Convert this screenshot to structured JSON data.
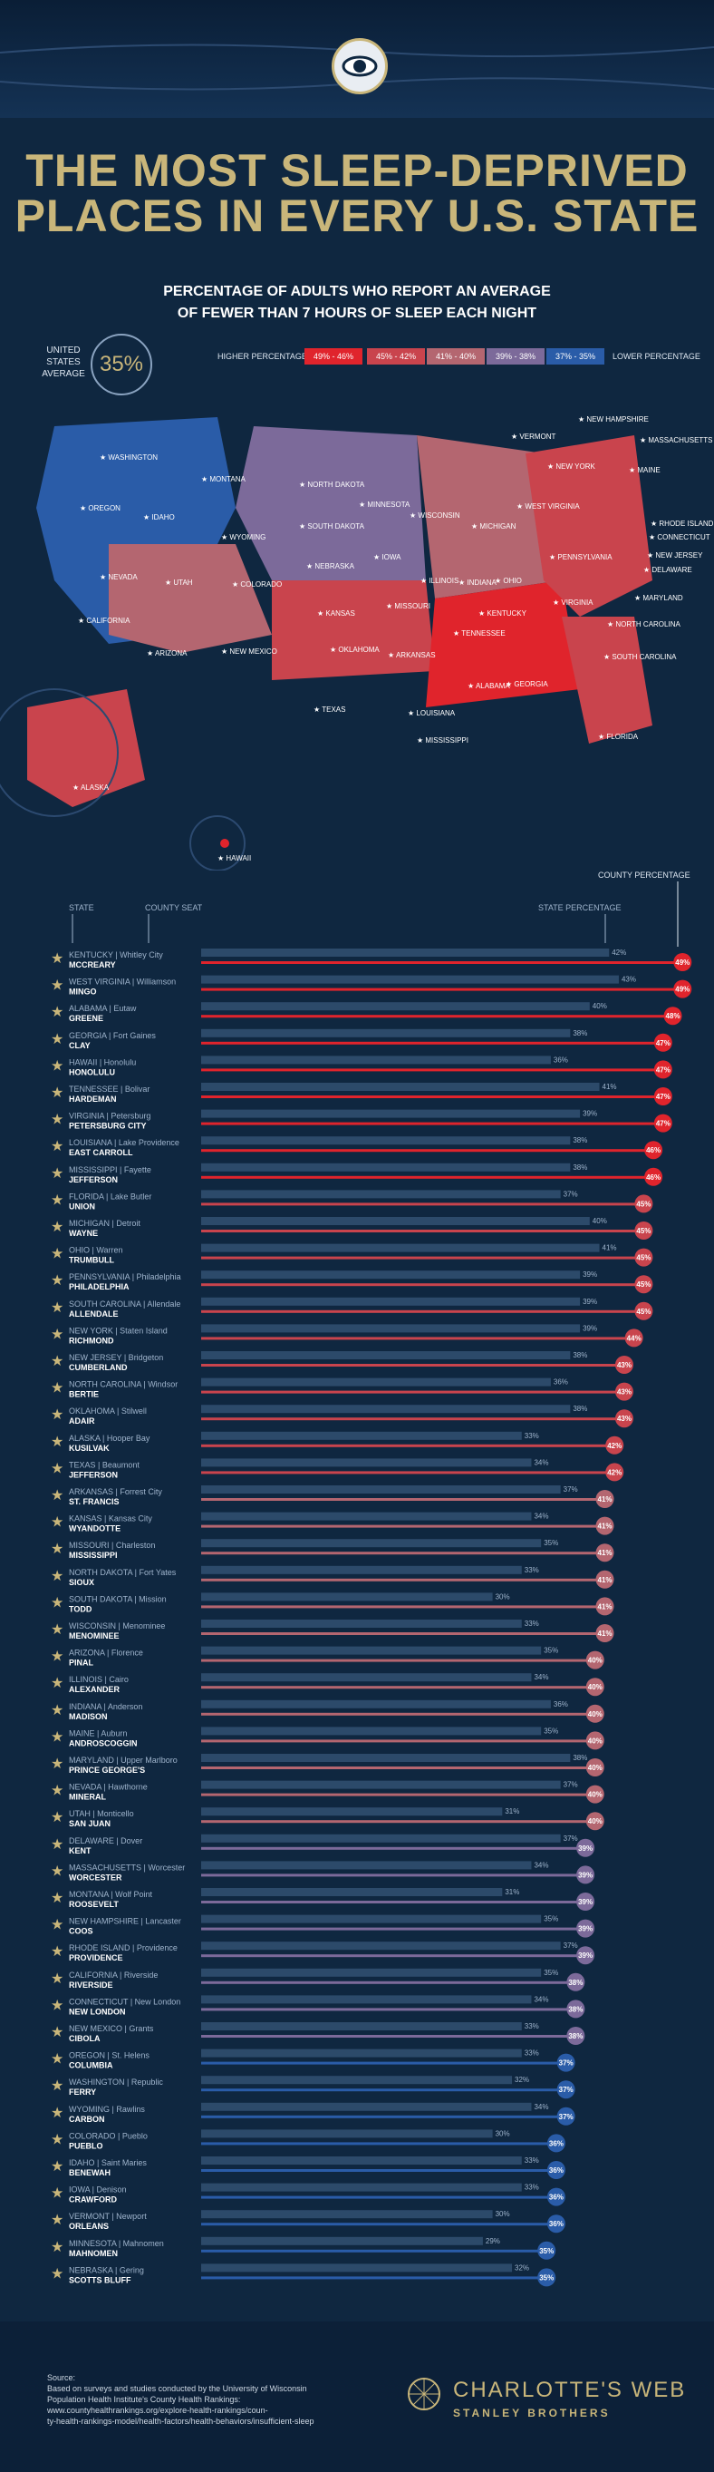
{
  "title_line1": "THE MOST SLEEP-DEPRIVED",
  "title_line2": "PLACES IN EVERY U.S. STATE",
  "subtitle_line1": "PERCENTAGE OF ADULTS WHO REPORT AN AVERAGE",
  "subtitle_line2": "OF FEWER THAN 7 HOURS OF SLEEP EACH NIGHT",
  "us_avg_label_1": "UNITED",
  "us_avg_label_2": "STATES",
  "us_avg_label_3": "AVERAGE",
  "us_avg_value": "35%",
  "legend": {
    "higher": "HIGHER PERCENTAGE",
    "lower": "LOWER PERCENTAGE",
    "bins": [
      {
        "label": "49% - 46%",
        "color": "#e0242c"
      },
      {
        "label": "45% - 42%",
        "color": "#c9444d"
      },
      {
        "label": "41% - 40%",
        "color": "#b46670"
      },
      {
        "label": "39% - 38%",
        "color": "#7c6a9a"
      },
      {
        "label": "37% - 35%",
        "color": "#2a5ca8"
      }
    ]
  },
  "map_labels": [
    {
      "name": "WASHINGTON"
    },
    {
      "name": "OREGON"
    },
    {
      "name": "CALIFORNIA"
    },
    {
      "name": "IDAHO"
    },
    {
      "name": "NEVADA"
    },
    {
      "name": "MONTANA"
    },
    {
      "name": "WYOMING"
    },
    {
      "name": "UTAH"
    },
    {
      "name": "ARIZONA"
    },
    {
      "name": "COLORADO"
    },
    {
      "name": "NEW MEXICO"
    },
    {
      "name": "NORTH DAKOTA"
    },
    {
      "name": "SOUTH DAKOTA"
    },
    {
      "name": "NEBRASKA"
    },
    {
      "name": "KANSAS"
    },
    {
      "name": "OKLAHOMA"
    },
    {
      "name": "TEXAS"
    },
    {
      "name": "MINNESOTA"
    },
    {
      "name": "IOWA"
    },
    {
      "name": "MISSOURI"
    },
    {
      "name": "ARKANSAS"
    },
    {
      "name": "LOUISIANA"
    },
    {
      "name": "WISCONSIN"
    },
    {
      "name": "ILLINOIS"
    },
    {
      "name": "MICHIGAN"
    },
    {
      "name": "INDIANA"
    },
    {
      "name": "OHIO"
    },
    {
      "name": "KENTUCKY"
    },
    {
      "name": "TENNESSEE"
    },
    {
      "name": "MISSISSIPPI"
    },
    {
      "name": "ALABAMA"
    },
    {
      "name": "GEORGIA"
    },
    {
      "name": "FLORIDA"
    },
    {
      "name": "SOUTH CAROLINA"
    },
    {
      "name": "NORTH CAROLINA"
    },
    {
      "name": "VIRGINIA"
    },
    {
      "name": "WEST VIRGINIA"
    },
    {
      "name": "PENNSYLVANIA"
    },
    {
      "name": "NEW YORK"
    },
    {
      "name": "VERMONT"
    },
    {
      "name": "NEW HAMPSHIRE"
    },
    {
      "name": "MAINE"
    },
    {
      "name": "MASSACHUSETTS"
    },
    {
      "name": "RHODE ISLAND"
    },
    {
      "name": "CONNECTICUT"
    },
    {
      "name": "NEW JERSEY"
    },
    {
      "name": "DELAWARE"
    },
    {
      "name": "MARYLAND"
    },
    {
      "name": "ALASKA"
    },
    {
      "name": "HAWAII"
    }
  ],
  "column_headers": {
    "state": "STATE",
    "county_seat": "COUNTY SEAT",
    "state_percentage": "STATE PERCENTAGE",
    "county_percentage": "COUNTY PERCENTAGE"
  },
  "chart_data": {
    "type": "bar",
    "title": "Percentage of adults who report an average of fewer than 7 hours of sleep each night",
    "xlim": [
      0,
      50
    ],
    "series": [
      {
        "name": "State percentage"
      },
      {
        "name": "County percentage"
      }
    ],
    "rows": [
      {
        "state": "KENTUCKY",
        "seat": "Whitley City",
        "county": "MCCREARY",
        "state_pct": 42,
        "county_pct": 49
      },
      {
        "state": "WEST VIRGINIA",
        "seat": "Williamson",
        "county": "MINGO",
        "state_pct": 43,
        "county_pct": 49
      },
      {
        "state": "ALABAMA",
        "seat": "Eutaw",
        "county": "GREENE",
        "state_pct": 40,
        "county_pct": 48
      },
      {
        "state": "GEORGIA",
        "seat": "Fort Gaines",
        "county": "CLAY",
        "state_pct": 38,
        "county_pct": 47
      },
      {
        "state": "HAWAII",
        "seat": "Honolulu",
        "county": "HONOLULU",
        "state_pct": 36,
        "county_pct": 47
      },
      {
        "state": "TENNESSEE",
        "seat": "Bolivar",
        "county": "HARDEMAN",
        "state_pct": 41,
        "county_pct": 47
      },
      {
        "state": "VIRGINIA",
        "seat": "Petersburg",
        "county": "PETERSBURG CITY",
        "state_pct": 39,
        "county_pct": 47
      },
      {
        "state": "LOUISIANA",
        "seat": "Lake Providence",
        "county": "EAST CARROLL",
        "state_pct": 38,
        "county_pct": 46
      },
      {
        "state": "MISSISSIPPI",
        "seat": "Fayette",
        "county": "JEFFERSON",
        "state_pct": 38,
        "county_pct": 46
      },
      {
        "state": "FLORIDA",
        "seat": "Lake Butler",
        "county": "UNION",
        "state_pct": 37,
        "county_pct": 45
      },
      {
        "state": "MICHIGAN",
        "seat": "Detroit",
        "county": "WAYNE",
        "state_pct": 40,
        "county_pct": 45
      },
      {
        "state": "OHIO",
        "seat": "Warren",
        "county": "TRUMBULL",
        "state_pct": 41,
        "county_pct": 45
      },
      {
        "state": "PENNSYLVANIA",
        "seat": "Philadelphia",
        "county": "PHILADELPHIA",
        "state_pct": 39,
        "county_pct": 45
      },
      {
        "state": "SOUTH CAROLINA",
        "seat": "Allendale",
        "county": "ALLENDALE",
        "state_pct": 39,
        "county_pct": 45
      },
      {
        "state": "NEW YORK",
        "seat": "Staten Island",
        "county": "RICHMOND",
        "state_pct": 39,
        "county_pct": 44
      },
      {
        "state": "NEW JERSEY",
        "seat": "Bridgeton",
        "county": "CUMBERLAND",
        "state_pct": 38,
        "county_pct": 43
      },
      {
        "state": "NORTH CAROLINA",
        "seat": "Windsor",
        "county": "BERTIE",
        "state_pct": 36,
        "county_pct": 43
      },
      {
        "state": "OKLAHOMA",
        "seat": "Stilwell",
        "county": "ADAIR",
        "state_pct": 38,
        "county_pct": 43
      },
      {
        "state": "ALASKA",
        "seat": "Hooper Bay",
        "county": "KUSILVAK",
        "state_pct": 33,
        "county_pct": 42
      },
      {
        "state": "TEXAS",
        "seat": "Beaumont",
        "county": "JEFFERSON",
        "state_pct": 34,
        "county_pct": 42
      },
      {
        "state": "ARKANSAS",
        "seat": "Forrest City",
        "county": "ST. FRANCIS",
        "state_pct": 37,
        "county_pct": 41
      },
      {
        "state": "KANSAS",
        "seat": "Kansas City",
        "county": "WYANDOTTE",
        "state_pct": 34,
        "county_pct": 41
      },
      {
        "state": "MISSOURI",
        "seat": "Charleston",
        "county": "MISSISSIPPI",
        "state_pct": 35,
        "county_pct": 41
      },
      {
        "state": "NORTH DAKOTA",
        "seat": "Fort Yates",
        "county": "SIOUX",
        "state_pct": 33,
        "county_pct": 41
      },
      {
        "state": "SOUTH DAKOTA",
        "seat": "Mission",
        "county": "TODD",
        "state_pct": 30,
        "county_pct": 41
      },
      {
        "state": "WISCONSIN",
        "seat": "Menominee",
        "county": "MENOMINEE",
        "state_pct": 33,
        "county_pct": 41
      },
      {
        "state": "ARIZONA",
        "seat": "Florence",
        "county": "PINAL",
        "state_pct": 35,
        "county_pct": 40
      },
      {
        "state": "ILLINOIS",
        "seat": "Cairo",
        "county": "ALEXANDER",
        "state_pct": 34,
        "county_pct": 40
      },
      {
        "state": "INDIANA",
        "seat": "Anderson",
        "county": "MADISON",
        "state_pct": 36,
        "county_pct": 40
      },
      {
        "state": "MAINE",
        "seat": "Auburn",
        "county": "ANDROSCOGGIN",
        "state_pct": 35,
        "county_pct": 40
      },
      {
        "state": "MARYLAND",
        "seat": "Upper Marlboro",
        "county": "PRINCE GEORGE'S",
        "state_pct": 38,
        "county_pct": 40
      },
      {
        "state": "NEVADA",
        "seat": "Hawthorne",
        "county": "MINERAL",
        "state_pct": 37,
        "county_pct": 40
      },
      {
        "state": "UTAH",
        "seat": "Monticello",
        "county": "SAN JUAN",
        "state_pct": 31,
        "county_pct": 40
      },
      {
        "state": "DELAWARE",
        "seat": "Dover",
        "county": "KENT",
        "state_pct": 37,
        "county_pct": 39
      },
      {
        "state": "MASSACHUSETTS",
        "seat": "Worcester",
        "county": "WORCESTER",
        "state_pct": 34,
        "county_pct": 39
      },
      {
        "state": "MONTANA",
        "seat": "Wolf Point",
        "county": "ROOSEVELT",
        "state_pct": 31,
        "county_pct": 39
      },
      {
        "state": "NEW HAMPSHIRE",
        "seat": "Lancaster",
        "county": "COOS",
        "state_pct": 35,
        "county_pct": 39
      },
      {
        "state": "RHODE ISLAND",
        "seat": "Providence",
        "county": "PROVIDENCE",
        "state_pct": 37,
        "county_pct": 39
      },
      {
        "state": "CALIFORNIA",
        "seat": "Riverside",
        "county": "RIVERSIDE",
        "state_pct": 35,
        "county_pct": 38
      },
      {
        "state": "CONNECTICUT",
        "seat": "New London",
        "county": "NEW LONDON",
        "state_pct": 34,
        "county_pct": 38
      },
      {
        "state": "NEW MEXICO",
        "seat": "Grants",
        "county": "CIBOLA",
        "state_pct": 33,
        "county_pct": 38
      },
      {
        "state": "OREGON",
        "seat": "St. Helens",
        "county": "COLUMBIA",
        "state_pct": 33,
        "county_pct": 37
      },
      {
        "state": "WASHINGTON",
        "seat": "Republic",
        "county": "FERRY",
        "state_pct": 32,
        "county_pct": 37
      },
      {
        "state": "WYOMING",
        "seat": "Rawlins",
        "county": "CARBON",
        "state_pct": 34,
        "county_pct": 37
      },
      {
        "state": "COLORADO",
        "seat": "Pueblo",
        "county": "PUEBLO",
        "state_pct": 30,
        "county_pct": 36
      },
      {
        "state": "IDAHO",
        "seat": "Saint Maries",
        "county": "BENEWAH",
        "state_pct": 33,
        "county_pct": 36
      },
      {
        "state": "IOWA",
        "seat": "Denison",
        "county": "CRAWFORD",
        "state_pct": 33,
        "county_pct": 36
      },
      {
        "state": "VERMONT",
        "seat": "Newport",
        "county": "ORLEANS",
        "state_pct": 30,
        "county_pct": 36
      },
      {
        "state": "MINNESOTA",
        "seat": "Mahnomen",
        "county": "MAHNOMEN",
        "state_pct": 29,
        "county_pct": 35
      },
      {
        "state": "NEBRASKA",
        "seat": "Gering",
        "county": "SCOTTS BLUFF",
        "state_pct": 32,
        "county_pct": 35
      }
    ]
  },
  "footer": {
    "source_label": "Source:",
    "source_line1": "Based on surveys and studies conducted by the University of Wisconsin",
    "source_line2": "Population Health Institute's County Health Rankings:",
    "source_line3": "www.countyhealthrankings.org/explore-health-rankings/coun-",
    "source_line4": "ty-health-rankings-model/health-factors/health-behaviors/insufficient-sleep",
    "brand": "CHARLOTTE'S WEB",
    "brand_sub": "STANLEY BROTHERS"
  }
}
